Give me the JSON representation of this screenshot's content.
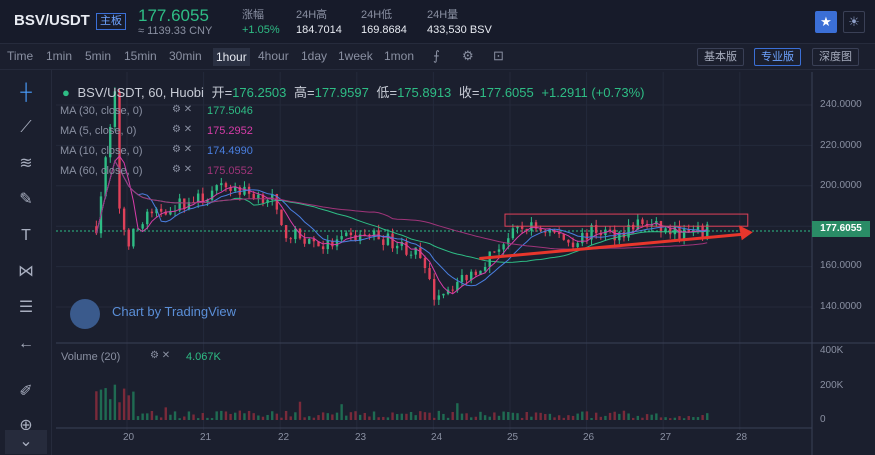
{
  "header": {
    "pair": "BSV/USDT",
    "tag": "主板",
    "price": "177.6055",
    "cny": "≈ 1139.33 CNY",
    "stats": [
      {
        "label": "涨幅",
        "value": "+1.05%",
        "color": "#2ebd85"
      },
      {
        "label": "24H高",
        "value": "184.7014",
        "color": "#e8ebf2"
      },
      {
        "label": "24H低",
        "value": "169.8684",
        "color": "#e8ebf2"
      },
      {
        "label": "24H量",
        "value": "433,530 BSV",
        "color": "#e8ebf2"
      }
    ],
    "icons": [
      "star-icon",
      "theme-toggle-icon"
    ]
  },
  "toolbar": {
    "timeframes": [
      "Time",
      "1min",
      "5min",
      "15min",
      "30min",
      "1hour",
      "4hour",
      "1day",
      "1week",
      "1mon"
    ],
    "active": "1hour",
    "views": [
      "基本版",
      "专业版",
      "深度图"
    ],
    "active_view": "专业版"
  },
  "legend": {
    "symbol": "BSV/USDT, 60, Huobi",
    "open_label": "开=",
    "open": "176.2503",
    "high_label": "高=",
    "high": "177.9597",
    "low_label": "低=",
    "low": "175.8913",
    "close_label": "收=",
    "close": "177.6055",
    "change": "+1.2911 (+0.73%)",
    "mas": [
      {
        "label": "MA (30, close, 0)",
        "value": "177.5046",
        "color": "#2ebd85"
      },
      {
        "label": "MA (5, close, 0)",
        "value": "175.2952",
        "color": "#d63ca8"
      },
      {
        "label": "MA (10, close, 0)",
        "value": "174.4990",
        "color": "#4a7fe0"
      },
      {
        "label": "MA (60, close, 0)",
        "value": "175.0552",
        "color": "#a0347a"
      }
    ],
    "volume_label": "Volume (20)",
    "volume_value": "4.067K"
  },
  "watermark": "Chart by TradingView",
  "chart_data": {
    "type": "candlestick",
    "price_axis": {
      "ticks": [
        "240.0000",
        "220.0000",
        "200.0000",
        "180.0000",
        "160.0000",
        "140.0000"
      ],
      "ylim": [
        130,
        250
      ]
    },
    "volume_axis": {
      "ticks": [
        "400K",
        "200K",
        "0"
      ],
      "ylim": [
        0,
        420
      ]
    },
    "x_ticks": [
      "20",
      "21",
      "22",
      "23",
      "24",
      "25",
      "26",
      "27",
      "28"
    ],
    "current_price": "177.6055",
    "close_path": [
      [
        19.6,
        180
      ],
      [
        19.85,
        246
      ],
      [
        19.9,
        190
      ],
      [
        20.0,
        172
      ],
      [
        20.3,
        186
      ],
      [
        20.6,
        190
      ],
      [
        21.0,
        194
      ],
      [
        21.3,
        200
      ],
      [
        21.6,
        196
      ],
      [
        21.9,
        194
      ],
      [
        22.0,
        178
      ],
      [
        22.3,
        174
      ],
      [
        22.6,
        170
      ],
      [
        22.9,
        174
      ],
      [
        23.2,
        176
      ],
      [
        23.5,
        172
      ],
      [
        23.8,
        166
      ],
      [
        24.0,
        146
      ],
      [
        24.3,
        152
      ],
      [
        24.6,
        160
      ],
      [
        24.9,
        172
      ],
      [
        25.2,
        180
      ],
      [
        25.5,
        178
      ],
      [
        25.8,
        172
      ],
      [
        26.1,
        178
      ],
      [
        26.4,
        176
      ],
      [
        26.7,
        182
      ],
      [
        27.0,
        178
      ],
      [
        27.3,
        176
      ],
      [
        27.6,
        177.6
      ]
    ],
    "annotations": {
      "resistance_box": {
        "x": [
          25.0,
          28.3
        ],
        "y": [
          180,
          186
        ]
      },
      "trend_arrow": {
        "from": [
          24.6,
          164
        ],
        "to": [
          28.3,
          176
        ]
      }
    }
  }
}
